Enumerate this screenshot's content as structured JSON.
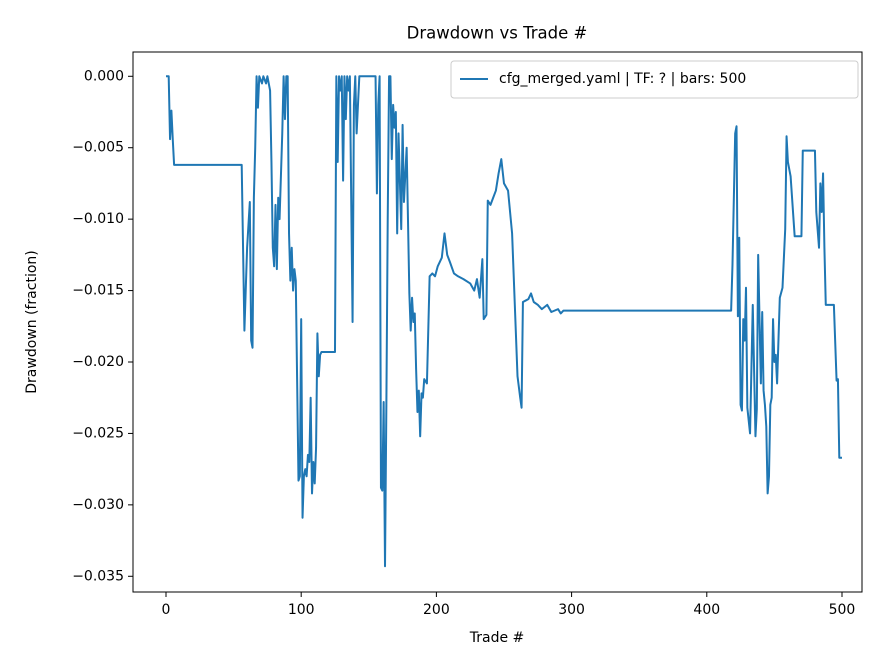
{
  "chart_data": {
    "type": "line",
    "title": "Drawdown vs Trade #",
    "xlabel": "Trade #",
    "ylabel": "Drawdown (fraction)",
    "legend": "upper right",
    "grid": false,
    "xlim": [
      -24.4,
      514.8
    ],
    "ylim": [
      -0.0361,
      0.0017
    ],
    "xticks": [
      0,
      100,
      200,
      300,
      400,
      500
    ],
    "yticks": [
      {
        "value": 0,
        "label": "0.000"
      },
      {
        "value": -0.005,
        "label": "−0.005"
      },
      {
        "value": -0.01,
        "label": "−0.010"
      },
      {
        "value": -0.015,
        "label": "−0.015"
      },
      {
        "value": -0.02,
        "label": "−0.020"
      },
      {
        "value": -0.025,
        "label": "−0.025"
      },
      {
        "value": -0.03,
        "label": "−0.030"
      },
      {
        "value": -0.035,
        "label": "−0.035"
      }
    ],
    "x": [
      0,
      2,
      3,
      4,
      5,
      6,
      56,
      58,
      60,
      62,
      63,
      64,
      65,
      66,
      67,
      68,
      69,
      71,
      72,
      74,
      75,
      77,
      78,
      79,
      80,
      81,
      82,
      83,
      84,
      86,
      87,
      88,
      89,
      90,
      91,
      92,
      93,
      94,
      95,
      96,
      98,
      99,
      100,
      101,
      102,
      103,
      104,
      105,
      106,
      107,
      108,
      109,
      110,
      111,
      112,
      113,
      114,
      115,
      125,
      126,
      127,
      128,
      129,
      130,
      131,
      132,
      133,
      134,
      135,
      136,
      138,
      139,
      140,
      141,
      142,
      143,
      155,
      156,
      157,
      158,
      159,
      160,
      161,
      162,
      163,
      164,
      165,
      166,
      167,
      168,
      169,
      170,
      171,
      172,
      174,
      175,
      176,
      178,
      180,
      181,
      182,
      183,
      184,
      185,
      186,
      187,
      188,
      189,
      190,
      191,
      193,
      195,
      197,
      199,
      201,
      204,
      206,
      208,
      210,
      213,
      216,
      220,
      225,
      228,
      230,
      232,
      234,
      235,
      237,
      238,
      240,
      242,
      244,
      246,
      248,
      250,
      253,
      256,
      258,
      260,
      262,
      263,
      264,
      266,
      268,
      270,
      272,
      275,
      278,
      282,
      285,
      290,
      292,
      294,
      418,
      419,
      421,
      422,
      423,
      424,
      425,
      426,
      427,
      428,
      429,
      430,
      432,
      434,
      436,
      437,
      438,
      440,
      441,
      442,
      443,
      444,
      445,
      446,
      447,
      448,
      449,
      450,
      451,
      452,
      454,
      456,
      458,
      459,
      460,
      462,
      465,
      470,
      471,
      480,
      481,
      483,
      484,
      485,
      486,
      487,
      488,
      494,
      496,
      497,
      498,
      500
    ],
    "series": [
      {
        "name": "cfg_merged.yaml | TF: ? | bars: 500",
        "color": "#1f77b4",
        "values": [
          0,
          0,
          -0.0044,
          -0.0024,
          -0.0044,
          -0.0062,
          -0.0062,
          -0.0178,
          -0.012,
          -0.0088,
          -0.0185,
          -0.019,
          -0.0085,
          -0.005,
          0,
          -0.0022,
          0,
          -0.0005,
          0,
          -0.0005,
          0,
          -0.001,
          -0.006,
          -0.012,
          -0.0133,
          -0.009,
          -0.0135,
          -0.0085,
          -0.01,
          -0.004,
          0,
          -0.003,
          0,
          0,
          -0.011,
          -0.0143,
          -0.012,
          -0.015,
          -0.0135,
          -0.0143,
          -0.0283,
          -0.028,
          -0.017,
          -0.0309,
          -0.028,
          -0.0275,
          -0.028,
          -0.0265,
          -0.027,
          -0.0225,
          -0.0292,
          -0.027,
          -0.0285,
          -0.026,
          -0.018,
          -0.021,
          -0.0195,
          -0.0193,
          -0.0193,
          0,
          -0.006,
          0,
          -0.001,
          0,
          -0.0073,
          0,
          -0.003,
          0,
          -0.001,
          0,
          -0.0172,
          -0.002,
          0,
          -0.004,
          -0.002,
          0,
          0,
          -0.0082,
          -0.002,
          0,
          -0.0288,
          -0.029,
          -0.0228,
          -0.0343,
          -0.023,
          -0.01,
          0,
          0,
          -0.0058,
          -0.002,
          -0.0036,
          -0.0025,
          -0.011,
          -0.004,
          -0.0107,
          -0.0034,
          -0.0088,
          -0.005,
          -0.0152,
          -0.0178,
          -0.0155,
          -0.0172,
          -0.0166,
          -0.0205,
          -0.0235,
          -0.022,
          -0.0252,
          -0.0222,
          -0.0225,
          -0.0212,
          -0.0215,
          -0.014,
          -0.0138,
          -0.014,
          -0.0133,
          -0.0127,
          -0.011,
          -0.0125,
          -0.013,
          -0.0138,
          -0.014,
          -0.0142,
          -0.0145,
          -0.015,
          -0.0142,
          -0.0155,
          -0.0128,
          -0.017,
          -0.0167,
          -0.0087,
          -0.009,
          -0.0085,
          -0.008,
          -0.0068,
          -0.0058,
          -0.0075,
          -0.008,
          -0.011,
          -0.016,
          -0.021,
          -0.0225,
          -0.0232,
          -0.0158,
          -0.0157,
          -0.0156,
          -0.0152,
          -0.0158,
          -0.016,
          -0.0163,
          -0.016,
          -0.0165,
          -0.0163,
          -0.0166,
          -0.0164,
          -0.0164,
          -0.0132,
          -0.004,
          -0.0035,
          -0.0168,
          -0.0113,
          -0.023,
          -0.0234,
          -0.017,
          -0.0185,
          -0.0148,
          -0.0232,
          -0.025,
          -0.016,
          -0.0252,
          -0.0233,
          -0.0125,
          -0.0215,
          -0.0165,
          -0.022,
          -0.023,
          -0.0245,
          -0.0292,
          -0.028,
          -0.023,
          -0.0225,
          -0.017,
          -0.02,
          -0.0195,
          -0.0215,
          -0.0155,
          -0.0148,
          -0.0107,
          -0.0042,
          -0.006,
          -0.007,
          -0.0112,
          -0.0112,
          -0.0052,
          -0.0052,
          -0.0095,
          -0.012,
          -0.0075,
          -0.0095,
          -0.0068,
          -0.012,
          -0.016,
          -0.016,
          -0.0213,
          -0.0212,
          -0.0267,
          -0.0267
        ]
      }
    ]
  }
}
